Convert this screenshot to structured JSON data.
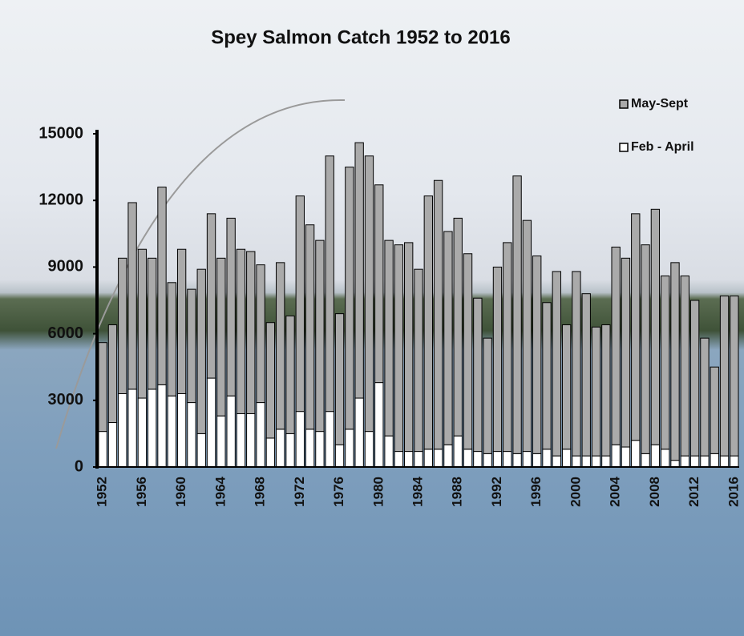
{
  "chart_data": {
    "type": "stacked_bar",
    "title": "Spey Salmon Catch 1952 to 2016",
    "categories": [
      "1952",
      null,
      null,
      null,
      "1956",
      null,
      null,
      null,
      "1960",
      null,
      null,
      null,
      "1964",
      null,
      null,
      null,
      "1968",
      null,
      null,
      null,
      "1972",
      null,
      null,
      null,
      "1976",
      null,
      null,
      null,
      "1980",
      null,
      null,
      null,
      "1984",
      null,
      null,
      null,
      "1988",
      null,
      null,
      null,
      "1992",
      null,
      null,
      null,
      "1996",
      null,
      null,
      null,
      "2000",
      null,
      null,
      null,
      "2004",
      null,
      null,
      null,
      "2008",
      null,
      null,
      null,
      "2012",
      null,
      null,
      null,
      "2016"
    ],
    "series": [
      {
        "name": "Feb - April",
        "color": "#ffffff",
        "values": [
          1600,
          2000,
          3300,
          3500,
          3100,
          3500,
          3700,
          3200,
          3300,
          2900,
          1500,
          4000,
          2300,
          3200,
          2400,
          2400,
          2900,
          1300,
          1700,
          1500,
          2500,
          1700,
          1600,
          2500,
          1000,
          1700,
          3100,
          1600,
          3800,
          1400,
          700,
          700,
          700,
          800,
          800,
          1000,
          1400,
          800,
          700,
          600,
          700,
          700,
          600,
          700,
          600,
          800,
          500,
          800,
          500,
          500,
          500,
          500,
          1000,
          900,
          1200,
          600,
          1000,
          800,
          300,
          500,
          500,
          500,
          600,
          500,
          500
        ]
      },
      {
        "name": "May-Sept",
        "color": "#aaaaaa",
        "values": [
          4000,
          4400,
          6100,
          8400,
          6700,
          5900,
          8900,
          5100,
          6500,
          5100,
          7400,
          7400,
          7100,
          8000,
          7400,
          7300,
          6200,
          5200,
          7500,
          5300,
          9700,
          9200,
          8600,
          11500,
          5900,
          11800,
          11500,
          12400,
          8900,
          8800,
          9300,
          9400,
          8200,
          11400,
          12100,
          9600,
          9800,
          8800,
          6900,
          5200,
          8300,
          9400,
          12500,
          10400,
          8900,
          6600,
          8300,
          5600,
          8300,
          7300,
          5800,
          5900,
          8900,
          8500,
          10200,
          9400,
          10600,
          7800,
          8900,
          8100,
          7000,
          5300,
          3900,
          7200,
          7200
        ]
      }
    ],
    "ylim": [
      0,
      15000
    ],
    "yticks": [
      0,
      3000,
      6000,
      9000,
      12000,
      15000
    ],
    "legend": "upper right"
  }
}
